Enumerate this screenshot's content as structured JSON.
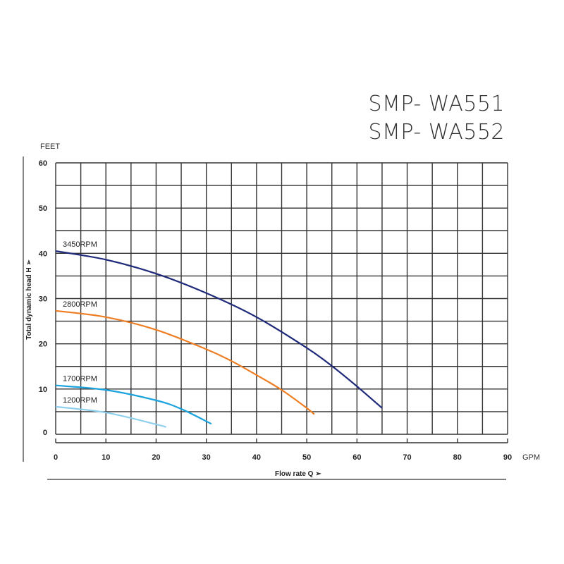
{
  "header": {
    "model_1": "SMP- WA551",
    "model_2": "SMP- WA552"
  },
  "chart_data": {
    "type": "line",
    "title": "",
    "xlabel": "Flow rate Q",
    "ylabel": "Total dynamic head H",
    "x_unit": "GPM",
    "y_unit": "FEET",
    "xlim": [
      0,
      90
    ],
    "ylim": [
      0,
      60
    ],
    "xticks": [
      0,
      10,
      20,
      30,
      40,
      50,
      60,
      70,
      80,
      90
    ],
    "yticks": [
      0,
      10,
      20,
      30,
      40,
      50,
      60
    ],
    "grid": true,
    "series": [
      {
        "name": "3450RPM",
        "color": "#1f2a7a",
        "x": [
          0,
          10,
          20,
          30,
          40,
          50,
          55,
          60,
          65
        ],
        "y": [
          40.5,
          38.6,
          35.5,
          31.2,
          25.9,
          19.1,
          15.1,
          10.6,
          5.8
        ]
      },
      {
        "name": "2800RPM",
        "color": "#ee7d22",
        "x": [
          0,
          10,
          20,
          30,
          35,
          40,
          45,
          50,
          51.5
        ],
        "y": [
          27.3,
          25.9,
          23.1,
          18.8,
          16.2,
          13.1,
          9.8,
          5.8,
          4.4
        ]
      },
      {
        "name": "1700RPM",
        "color": "#1aa3dc",
        "x": [
          0,
          10,
          20,
          25,
          31
        ],
        "y": [
          10.8,
          9.8,
          7.5,
          5.6,
          2.3
        ]
      },
      {
        "name": "1200RPM",
        "color": "#8fd0ee",
        "x": [
          0,
          10,
          20,
          22
        ],
        "y": [
          6.1,
          4.8,
          2.2,
          1.6
        ]
      }
    ]
  }
}
